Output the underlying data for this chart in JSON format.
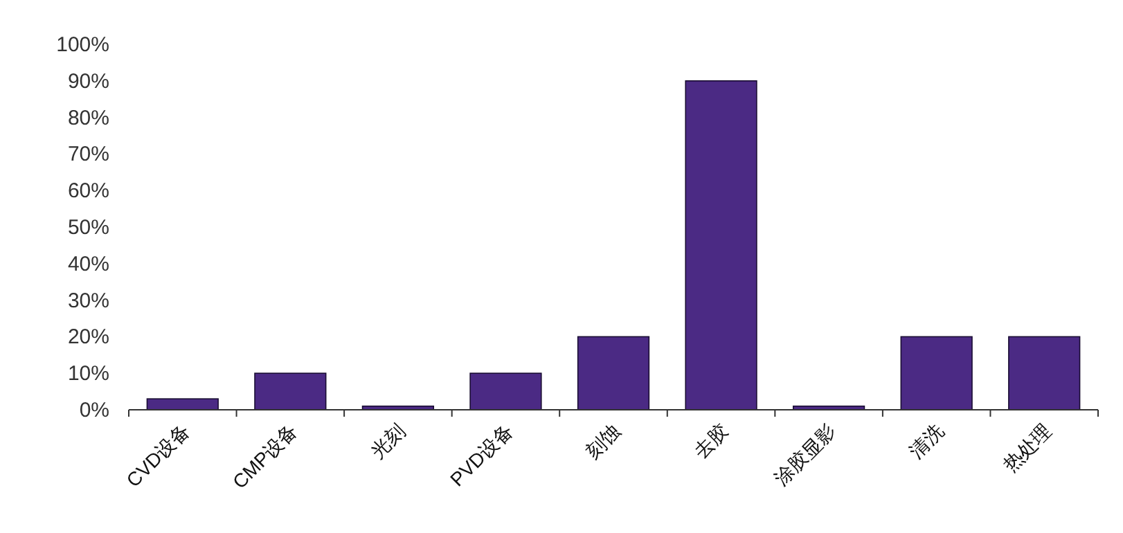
{
  "chart_data": {
    "type": "bar",
    "categories": [
      "CVD设备",
      "CMP设备",
      "光刻",
      "PVD设备",
      "刻蚀",
      "去胶",
      "涂胶显影",
      "清洗",
      "热处理"
    ],
    "values": [
      3,
      10,
      1,
      10,
      20,
      90,
      1,
      20,
      20
    ],
    "color": "#4b2a84",
    "ylim": [
      0,
      100
    ],
    "yticks": [
      {
        "value": 0,
        "label": "0%"
      },
      {
        "value": 10,
        "label": "10%"
      },
      {
        "value": 20,
        "label": "20%"
      },
      {
        "value": 30,
        "label": "30%"
      },
      {
        "value": 40,
        "label": "40%"
      },
      {
        "value": 50,
        "label": "50%"
      },
      {
        "value": 60,
        "label": "60%"
      },
      {
        "value": 70,
        "label": "70%"
      },
      {
        "value": 80,
        "label": "80%"
      },
      {
        "value": 90,
        "label": "90%"
      },
      {
        "value": 100,
        "label": "100%"
      }
    ],
    "grid": false
  }
}
